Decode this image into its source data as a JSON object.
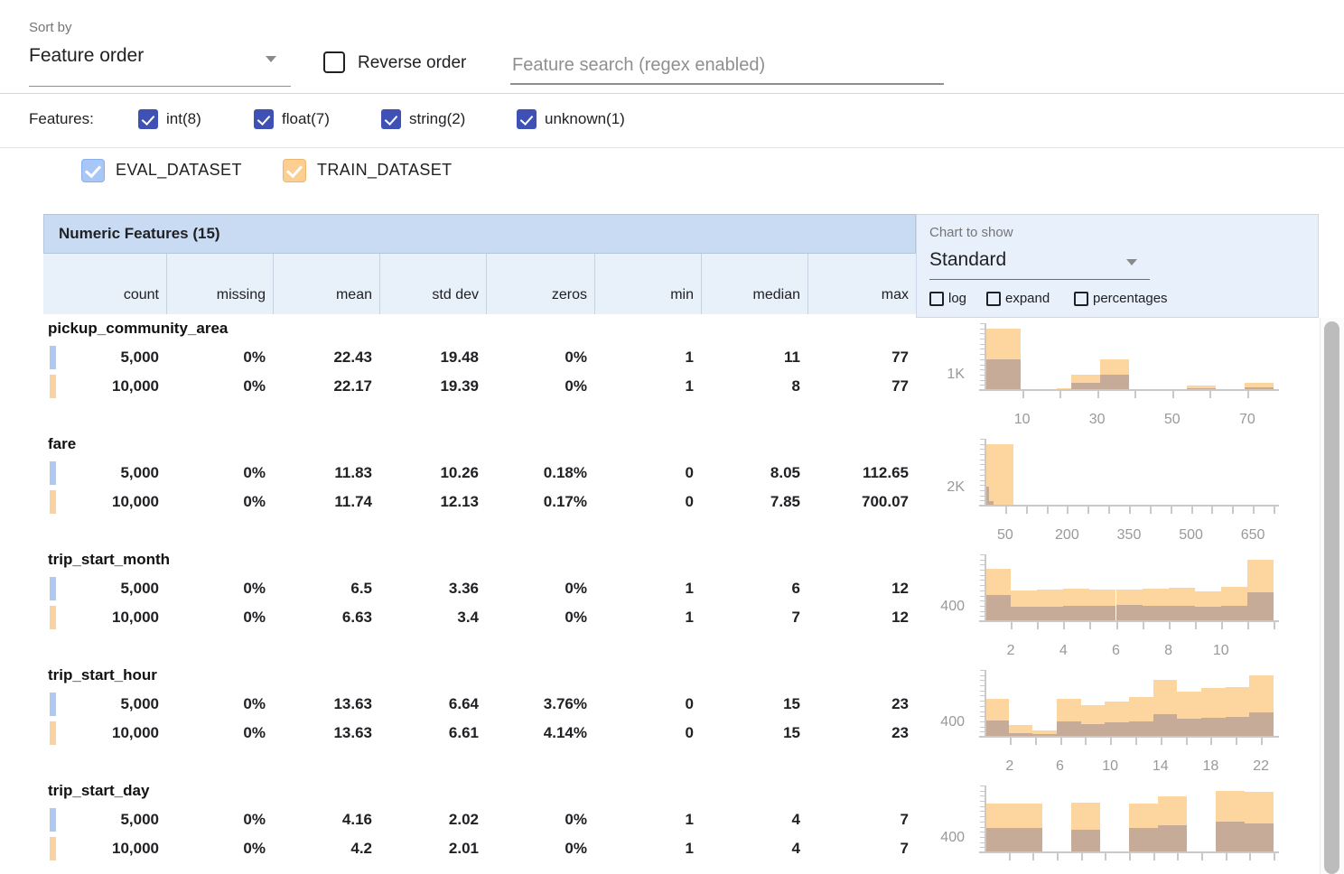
{
  "toolbar": {
    "sort_by_label": "Sort by",
    "sort_by_value": "Feature order",
    "reverse_order_label": "Reverse order",
    "search_placeholder": "Feature search (regex enabled)"
  },
  "filters": {
    "label": "Features:",
    "types": [
      {
        "label": "int(8)",
        "checked": true
      },
      {
        "label": "float(7)",
        "checked": true
      },
      {
        "label": "string(2)",
        "checked": true
      },
      {
        "label": "unknown(1)",
        "checked": true
      }
    ],
    "checkbox_color": "#3f51b5"
  },
  "datasets": [
    {
      "label": "EVAL_DATASET",
      "checked": true,
      "checkbox_color": "#a9c7f6",
      "checkbox_border": "#87b0ee",
      "swatch_color": "#b0c9f1"
    },
    {
      "label": "TRAIN_DATASET",
      "checked": true,
      "checkbox_color": "#fbcf92",
      "checkbox_border": "#edb76a",
      "swatch_color": "#f8d3a1"
    }
  ],
  "table": {
    "title": "Numeric Features (15)",
    "columns": [
      "count",
      "missing",
      "mean",
      "std dev",
      "zeros",
      "min",
      "median",
      "max"
    ],
    "features": [
      {
        "name": "pickup_community_area",
        "rows": [
          {
            "dataset_index": 0,
            "values": [
              "5,000",
              "0%",
              "22.43",
              "19.48",
              "0%",
              "1",
              "11",
              "77"
            ]
          },
          {
            "dataset_index": 1,
            "values": [
              "10,000",
              "0%",
              "22.17",
              "19.39",
              "0%",
              "1",
              "8",
              "77"
            ]
          }
        ]
      },
      {
        "name": "fare",
        "rows": [
          {
            "dataset_index": 0,
            "values": [
              "5,000",
              "0%",
              "11.83",
              "10.26",
              "0.18%",
              "0",
              "8.05",
              "112.65"
            ]
          },
          {
            "dataset_index": 1,
            "values": [
              "10,000",
              "0%",
              "11.74",
              "12.13",
              "0.17%",
              "0",
              "7.85",
              "700.07"
            ]
          }
        ]
      },
      {
        "name": "trip_start_month",
        "rows": [
          {
            "dataset_index": 0,
            "values": [
              "5,000",
              "0%",
              "6.5",
              "3.36",
              "0%",
              "1",
              "6",
              "12"
            ]
          },
          {
            "dataset_index": 1,
            "values": [
              "10,000",
              "0%",
              "6.63",
              "3.4",
              "0%",
              "1",
              "7",
              "12"
            ]
          }
        ]
      },
      {
        "name": "trip_start_hour",
        "rows": [
          {
            "dataset_index": 0,
            "values": [
              "5,000",
              "0%",
              "13.63",
              "6.64",
              "3.76%",
              "0",
              "15",
              "23"
            ]
          },
          {
            "dataset_index": 1,
            "values": [
              "10,000",
              "0%",
              "13.63",
              "6.61",
              "4.14%",
              "0",
              "15",
              "23"
            ]
          }
        ]
      },
      {
        "name": "trip_start_day",
        "rows": [
          {
            "dataset_index": 0,
            "values": [
              "5,000",
              "0%",
              "4.16",
              "2.02",
              "0%",
              "1",
              "4",
              "7"
            ]
          },
          {
            "dataset_index": 1,
            "values": [
              "10,000",
              "0%",
              "4.2",
              "2.01",
              "0%",
              "1",
              "4",
              "7"
            ]
          }
        ]
      }
    ]
  },
  "chart_controls": {
    "label": "Chart to show",
    "value": "Standard",
    "options": [
      {
        "label": "log",
        "checked": false
      },
      {
        "label": "expand",
        "checked": false
      },
      {
        "label": "percentages",
        "checked": false
      }
    ]
  },
  "chart_colors": {
    "train_bar": "#fcd69e",
    "eval_overlap_bar": "#c5ab98",
    "eval_bar": "#b0c9f1",
    "axis": "#c9c9c9",
    "tick_label": "#97999c"
  },
  "chart_data": [
    {
      "feature": "pickup_community_area",
      "type": "bar",
      "y_axis": {
        "label": "1K",
        "value": 1000
      },
      "x_min": 0,
      "x_max": 77,
      "x_minor_step": 10,
      "x_tick_labels": [
        10,
        30,
        50,
        70
      ],
      "series": [
        {
          "name": "TRAIN_DATASET",
          "key": "train",
          "bins": [
            [
              0,
              9.63,
              4250
            ],
            [
              9.63,
              19.25,
              20
            ],
            [
              19.25,
              23.1,
              120
            ],
            [
              23.1,
              30.8,
              1050
            ],
            [
              30.8,
              38.5,
              2100
            ],
            [
              38.5,
              46.2,
              15
            ],
            [
              46.2,
              53.9,
              10
            ],
            [
              53.9,
              61.6,
              300
            ],
            [
              61.6,
              69.3,
              10
            ],
            [
              69.3,
              77,
              480
            ]
          ]
        },
        {
          "name": "EVAL_DATASET",
          "key": "eval",
          "bins": [
            [
              0,
              9.63,
              2100
            ],
            [
              9.63,
              19.25,
              10
            ],
            [
              19.25,
              23.1,
              60
            ],
            [
              23.1,
              30.8,
              520
            ],
            [
              30.8,
              38.5,
              1050
            ],
            [
              38.5,
              46.2,
              8
            ],
            [
              46.2,
              53.9,
              5
            ],
            [
              53.9,
              61.6,
              120
            ],
            [
              61.6,
              69.3,
              5
            ],
            [
              69.3,
              77,
              180
            ]
          ]
        }
      ]
    },
    {
      "feature": "fare",
      "type": "bar",
      "y_axis": {
        "label": "2K",
        "value": 2000
      },
      "x_min": 0,
      "x_max": 700,
      "x_minor_step": 50,
      "x_tick_labels": [
        50,
        200,
        350,
        500,
        650
      ],
      "series": [
        {
          "name": "TRAIN_DATASET",
          "key": "train",
          "bins": [
            [
              0,
              70,
              7300
            ],
            [
              70,
              140,
              30
            ],
            [
              140,
              210,
              8
            ],
            [
              210,
              280,
              4
            ],
            [
              280,
              350,
              2
            ],
            [
              350,
              420,
              1
            ],
            [
              420,
              490,
              1
            ],
            [
              630,
              700,
              2
            ]
          ]
        },
        {
          "name": "EVAL_DATASET",
          "key": "eval",
          "bins": [
            [
              0,
              11.3,
              2300
            ],
            [
              11.3,
              22.5,
              500
            ],
            [
              22.5,
              33.8,
              160
            ],
            [
              33.8,
              45.1,
              60
            ],
            [
              45.1,
              56.3,
              25
            ],
            [
              56.3,
              67.6,
              12
            ],
            [
              67.6,
              78.9,
              6
            ],
            [
              78.9,
              90.2,
              3
            ],
            [
              90.2,
              101.4,
              2
            ],
            [
              101.4,
              112.65,
              1
            ]
          ]
        }
      ]
    },
    {
      "feature": "trip_start_month",
      "type": "bar",
      "y_axis": {
        "label": "400",
        "value": 400
      },
      "x_min": 1,
      "x_max": 12,
      "x_minor_step": 1,
      "x_tick_labels": [
        2,
        4,
        6,
        8,
        10
      ],
      "series": [
        {
          "name": "TRAIN_DATASET",
          "key": "train",
          "bins": [
            [
              1,
              2,
              1550
            ],
            [
              2,
              3,
              900
            ],
            [
              3,
              4,
              930
            ],
            [
              4,
              5,
              960
            ],
            [
              5,
              6,
              940
            ],
            [
              6,
              7,
              930
            ],
            [
              7,
              8,
              950
            ],
            [
              8,
              9,
              990
            ],
            [
              9,
              10,
              880
            ],
            [
              10,
              11,
              1000
            ],
            [
              11,
              12,
              1810
            ]
          ]
        },
        {
          "name": "EVAL_DATASET",
          "key": "eval",
          "bins": [
            [
              1,
              2,
              780
            ],
            [
              2,
              3,
              430
            ],
            [
              3,
              4,
              440
            ],
            [
              4,
              5,
              450
            ],
            [
              5,
              6,
              465
            ],
            [
              6,
              7,
              470
            ],
            [
              7,
              8,
              455
            ],
            [
              8,
              9,
              460
            ],
            [
              9,
              10,
              440
            ],
            [
              10,
              11,
              455
            ],
            [
              11,
              12,
              840
            ]
          ]
        }
      ]
    },
    {
      "feature": "trip_start_hour",
      "type": "bar",
      "y_axis": {
        "label": "400",
        "value": 400
      },
      "x_min": 0,
      "x_max": 23,
      "x_minor_step": 2,
      "x_tick_labels": [
        2,
        6,
        10,
        14,
        18,
        22
      ],
      "series": [
        {
          "name": "TRAIN_DATASET",
          "key": "train",
          "bins": [
            [
              0,
              1.92,
              1070
            ],
            [
              1.92,
              3.83,
              330
            ],
            [
              3.83,
              5.75,
              180
            ],
            [
              5.75,
              7.67,
              1070
            ],
            [
              7.67,
              9.58,
              905
            ],
            [
              9.58,
              11.5,
              1010
            ],
            [
              11.5,
              13.42,
              1140
            ],
            [
              13.42,
              15.33,
              1635
            ],
            [
              15.33,
              17.25,
              1280
            ],
            [
              17.25,
              19.17,
              1395
            ],
            [
              19.17,
              21.08,
              1420
            ],
            [
              21.08,
              23,
              1750
            ]
          ]
        },
        {
          "name": "EVAL_DATASET",
          "key": "eval",
          "bins": [
            [
              0,
              1.92,
              460
            ],
            [
              1.92,
              3.83,
              110
            ],
            [
              3.83,
              5.75,
              75
            ],
            [
              5.75,
              7.67,
              440
            ],
            [
              7.67,
              9.58,
              370
            ],
            [
              9.58,
              11.5,
              410
            ],
            [
              11.5,
              13.42,
              440
            ],
            [
              13.42,
              15.33,
              640
            ],
            [
              15.33,
              17.25,
              510
            ],
            [
              17.25,
              19.17,
              540
            ],
            [
              19.17,
              21.08,
              560
            ],
            [
              21.08,
              23,
              700
            ]
          ]
        }
      ]
    },
    {
      "feature": "trip_start_day",
      "type": "bar",
      "y_axis": {
        "label": "400",
        "value": 400
      },
      "x_min": 1,
      "x_max": 7,
      "x_minor_step": 0.5,
      "x_tick_labels": [],
      "series": [
        {
          "name": "TRAIN_DATASET",
          "key": "train",
          "bins": [
            [
              1,
              1.6,
              1400
            ],
            [
              1.6,
              2.2,
              1400
            ],
            [
              2.8,
              3.4,
              1430
            ],
            [
              4,
              4.6,
              1400
            ],
            [
              4.6,
              5.2,
              1600
            ],
            [
              5.8,
              6.4,
              1760
            ],
            [
              6.4,
              7,
              1730
            ]
          ]
        },
        {
          "name": "EVAL_DATASET",
          "key": "eval",
          "bins": [
            [
              1,
              1.6,
              700
            ],
            [
              1.6,
              2.2,
              700
            ],
            [
              2.8,
              3.4,
              640
            ],
            [
              4,
              4.6,
              700
            ],
            [
              4.6,
              5.2,
              780
            ],
            [
              5.8,
              6.4,
              870
            ],
            [
              6.4,
              7,
              830
            ]
          ]
        }
      ]
    }
  ]
}
